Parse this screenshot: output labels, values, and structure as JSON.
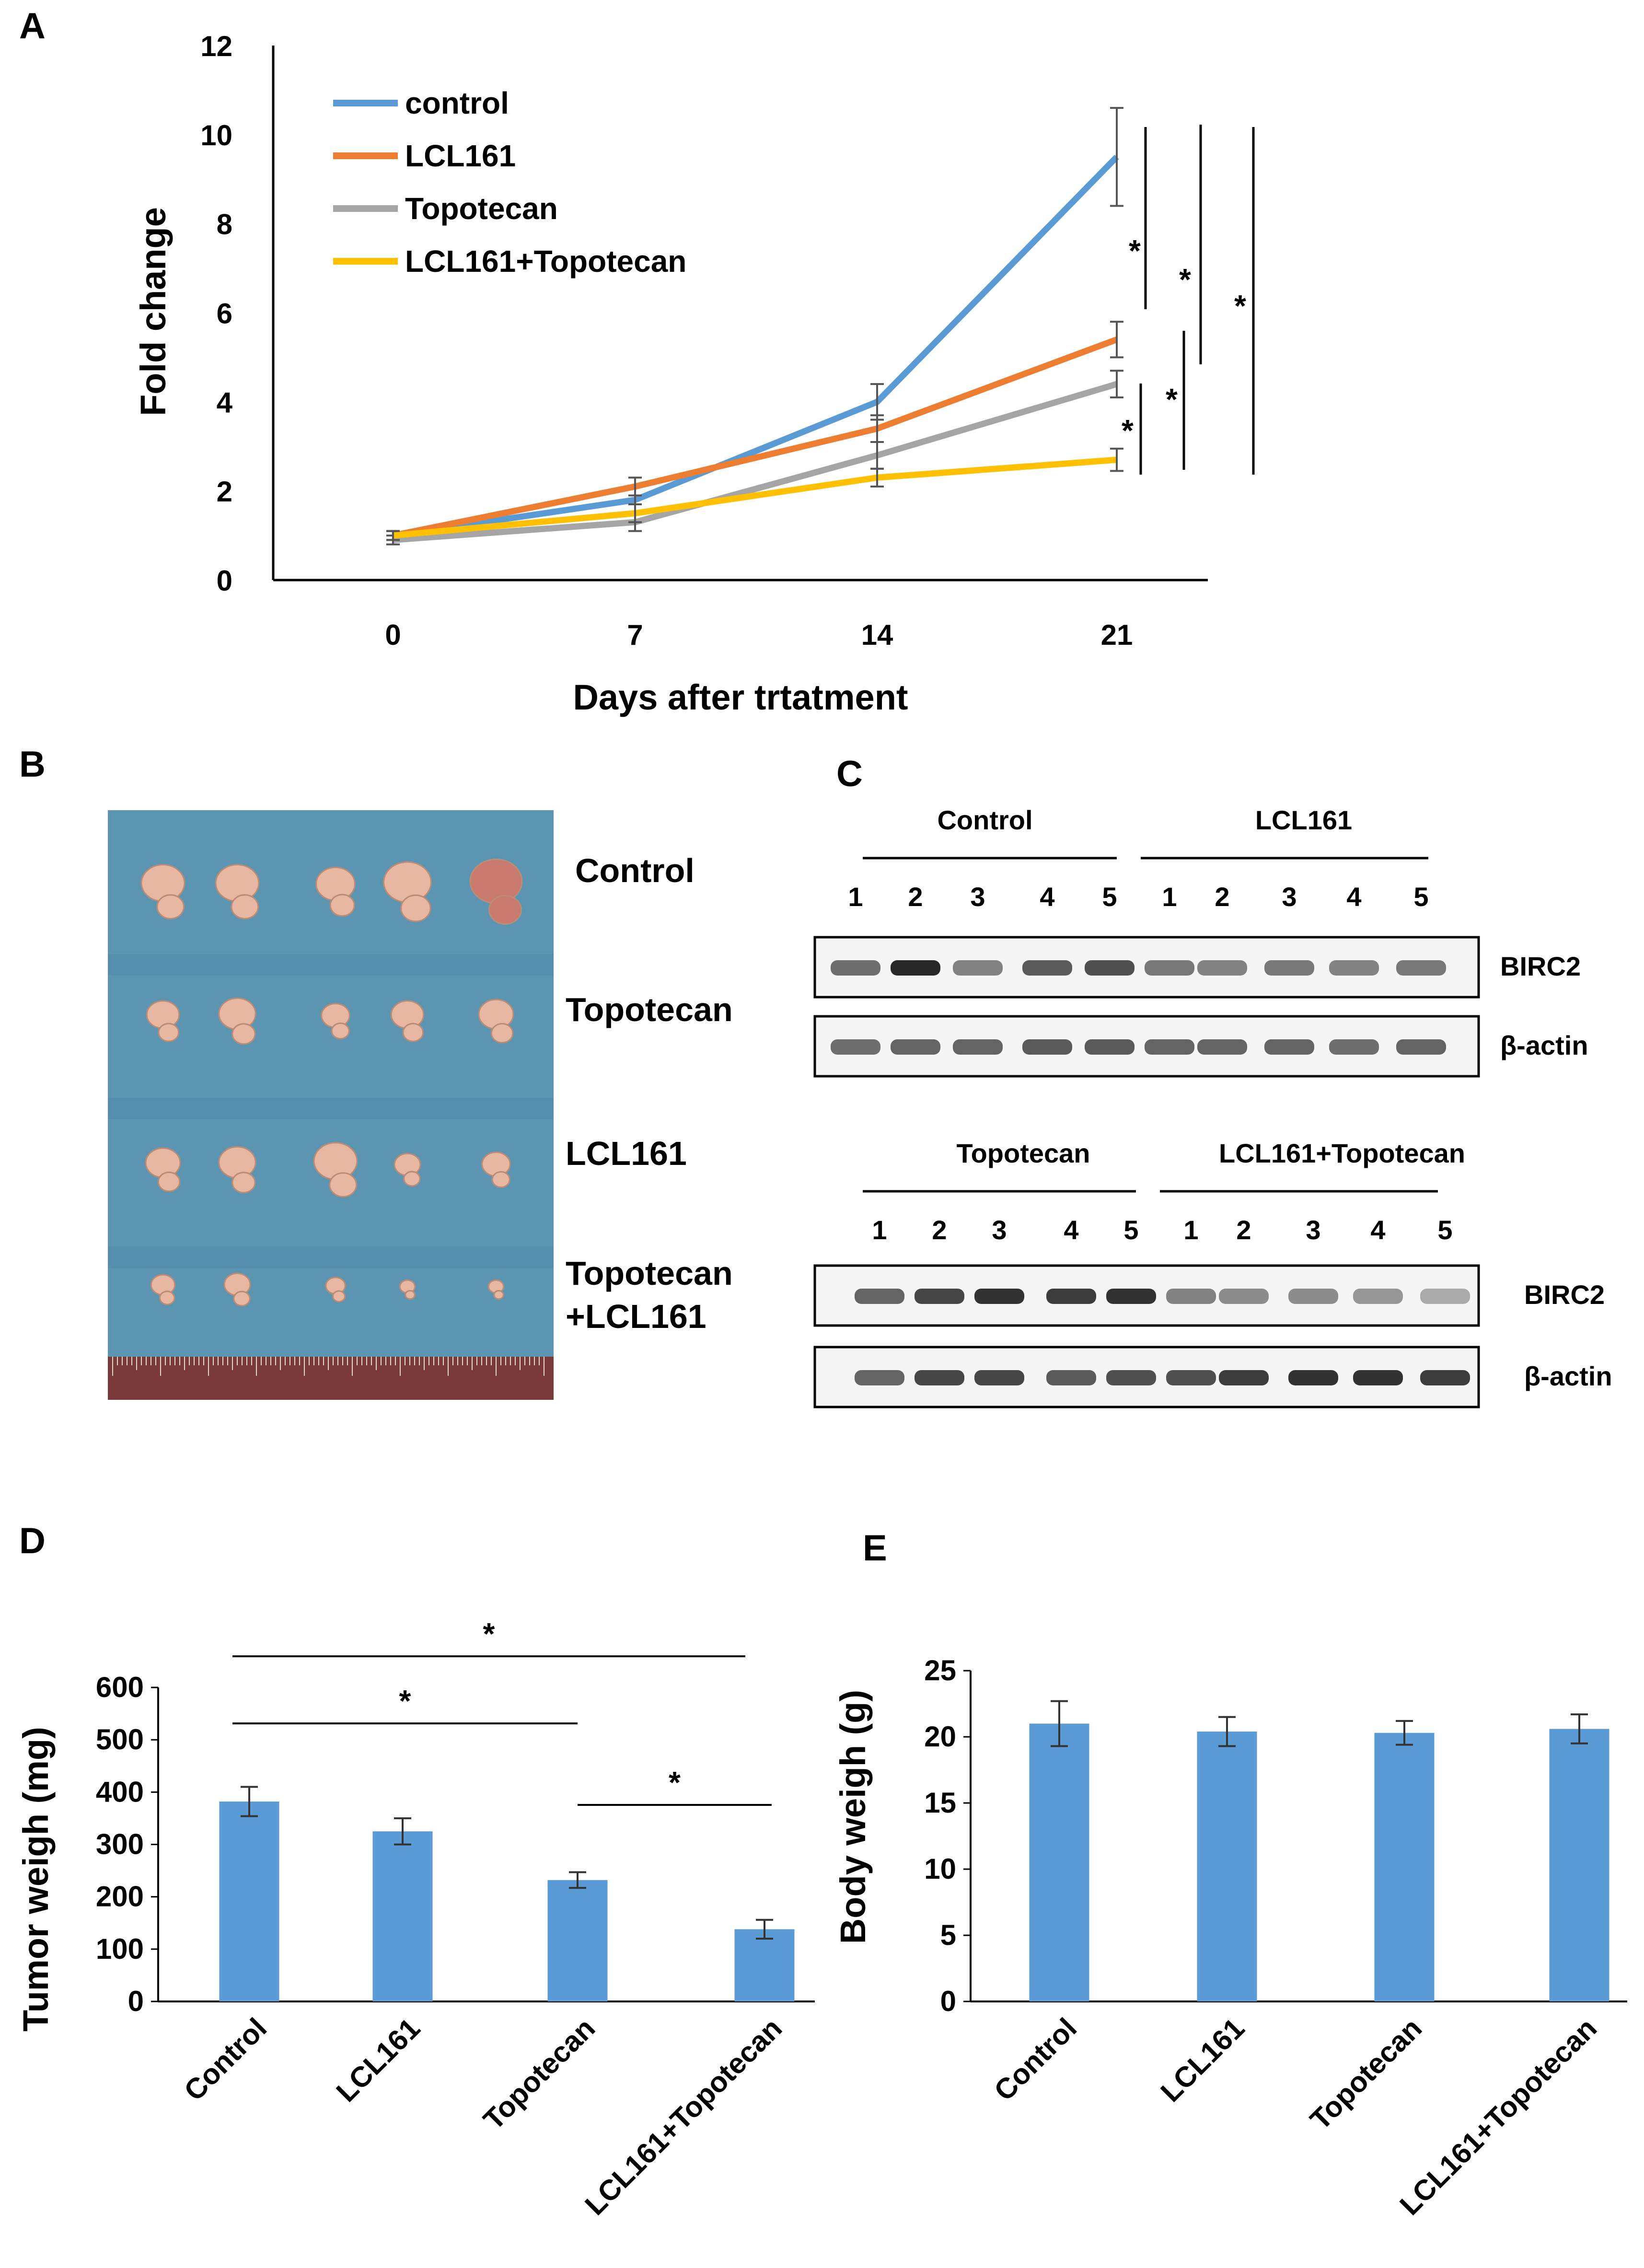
{
  "colors": {
    "control": "#5B9BD5",
    "lcl161": "#ED7D31",
    "topotecan": "#A5A5A5",
    "combo": "#FFC000",
    "bar": "#5B9BD5",
    "background_cloth": "#5b95b2",
    "tumor": "#e7b7a1"
  },
  "panels": {
    "a": "A",
    "b": "B",
    "c": "C",
    "d": "D",
    "e": "E"
  },
  "chart_data": [
    {
      "id": "A",
      "type": "line",
      "title": "",
      "xlabel": "Days after trtatment",
      "ylabel": "Fold change",
      "x": [
        0,
        7,
        14,
        21
      ],
      "ylim": [
        0,
        12
      ],
      "yticks": [
        0,
        2,
        4,
        6,
        8,
        10,
        12
      ],
      "series": [
        {
          "name": "control",
          "values": [
            1.0,
            1.8,
            4.0,
            9.5
          ],
          "errors": [
            0.1,
            0.3,
            0.4,
            1.1
          ]
        },
        {
          "name": "LCL161",
          "values": [
            1.0,
            2.1,
            3.4,
            5.4
          ],
          "errors": [
            0.1,
            0.2,
            0.3,
            0.4
          ]
        },
        {
          "name": "Topotecan",
          "values": [
            0.9,
            1.3,
            2.8,
            4.4
          ],
          "errors": [
            0.1,
            0.2,
            0.3,
            0.3
          ]
        },
        {
          "name": "LCL161+Topotecan",
          "values": [
            1.0,
            1.5,
            2.3,
            2.7
          ],
          "errors": [
            0.1,
            0.2,
            0.2,
            0.25
          ]
        }
      ],
      "significance": [
        "*",
        "*",
        "*",
        "*",
        "*"
      ]
    },
    {
      "id": "D",
      "type": "bar",
      "title": "",
      "xlabel": "",
      "ylabel": "Tumor weigh (mg)",
      "categories": [
        "Control",
        "LCL161",
        "Topotecan",
        "LCL161+Topotecan"
      ],
      "values": [
        382,
        325,
        232,
        138
      ],
      "errors": [
        28,
        25,
        15,
        18
      ],
      "ylim": [
        0,
        600
      ],
      "yticks": [
        0,
        100,
        200,
        300,
        400,
        500,
        600
      ],
      "significance": [
        "*",
        "*",
        "*"
      ]
    },
    {
      "id": "E",
      "type": "bar",
      "title": "",
      "xlabel": "",
      "ylabel": "Body weigh (g)",
      "categories": [
        "Control",
        "LCL161",
        "Topotecan",
        "LCL161+Topotecan"
      ],
      "values": [
        21.0,
        20.4,
        20.3,
        20.6
      ],
      "errors": [
        1.7,
        1.1,
        0.9,
        1.1
      ],
      "ylim": [
        0,
        25
      ],
      "yticks": [
        0,
        5,
        10,
        15,
        20,
        25
      ]
    }
  ],
  "photo": {
    "labels": [
      "Control",
      "Topotecan",
      "LCL161",
      "Topotecan\n+LCL161"
    ],
    "label_lines": [
      [
        "Control"
      ],
      [
        "Topotecan"
      ],
      [
        "LCL161"
      ],
      [
        "Topotecan",
        "+LCL161"
      ]
    ],
    "tumor_sizes": [
      [
        1.0,
        1.0,
        0.9,
        1.1,
        1.2
      ],
      [
        0.75,
        0.85,
        0.65,
        0.75,
        0.8
      ],
      [
        0.8,
        0.85,
        1.0,
        0.6,
        0.65
      ],
      [
        0.55,
        0.6,
        0.45,
        0.35,
        0.35
      ]
    ]
  },
  "blots": {
    "top": {
      "groups": [
        "Control",
        "LCL161"
      ],
      "lanes": [
        "1",
        "2",
        "3",
        "4",
        "5",
        "1",
        "2",
        "3",
        "4",
        "5"
      ],
      "rows": [
        {
          "label": "BIRC2",
          "intensities": [
            0.55,
            0.9,
            0.45,
            0.65,
            0.7,
            0.5,
            0.45,
            0.5,
            0.45,
            0.5
          ]
        },
        {
          "label": "β-actin",
          "intensities": [
            0.55,
            0.6,
            0.6,
            0.65,
            0.65,
            0.6,
            0.6,
            0.6,
            0.55,
            0.6
          ]
        }
      ]
    },
    "bottom": {
      "groups": [
        "Topotecan",
        "LCL161+Topotecan"
      ],
      "lanes": [
        "1",
        "2",
        "3",
        "4",
        "5",
        "1",
        "2",
        "3",
        "4",
        "5"
      ],
      "rows": [
        {
          "label": "BIRC2",
          "intensities": [
            0.6,
            0.75,
            0.85,
            0.8,
            0.85,
            0.45,
            0.4,
            0.4,
            0.35,
            0.25
          ]
        },
        {
          "label": "β-actin",
          "intensities": [
            0.6,
            0.75,
            0.75,
            0.65,
            0.7,
            0.7,
            0.8,
            0.85,
            0.85,
            0.8
          ]
        }
      ]
    }
  }
}
